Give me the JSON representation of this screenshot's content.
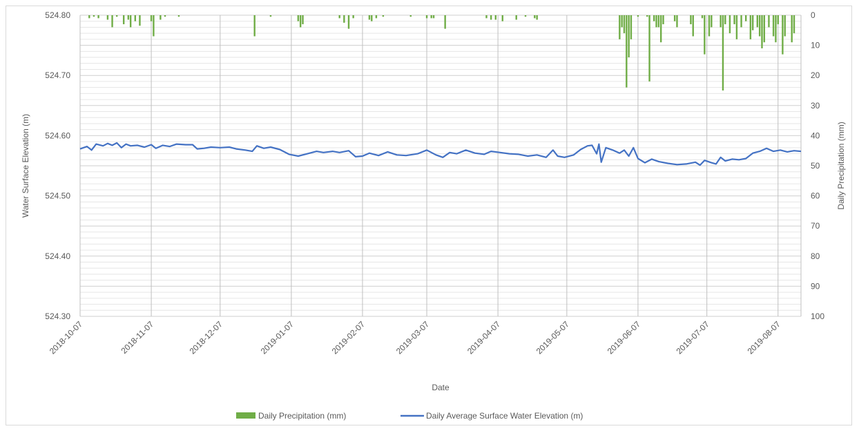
{
  "chart_data": {
    "type": "combo",
    "xlabel": "Date",
    "ylabel_left": "Water Surface Elevation (m)",
    "ylabel_right": "Daily Precipitation (mm)",
    "ylim_left": [
      524.3,
      524.8
    ],
    "ylim_right": [
      0,
      100
    ],
    "right_axis_inverted": true,
    "x_range": [
      "2018-10-07",
      "2019-08-17"
    ],
    "x_ticks": [
      "2018-10-07",
      "2018-11-07",
      "2018-12-07",
      "2019-01-07",
      "2019-02-07",
      "2019-03-07",
      "2019-04-07",
      "2019-05-07",
      "2019-06-07",
      "2019-07-07",
      "2019-08-07"
    ],
    "y_left_ticks": [
      "524.80",
      "524.70",
      "524.60",
      "524.50",
      "524.40",
      "524.30"
    ],
    "y_right_ticks": [
      "0",
      "10",
      "20",
      "30",
      "40",
      "50",
      "60",
      "70",
      "80",
      "90",
      "100"
    ],
    "grid": true,
    "legend_position": "bottom",
    "series": [
      {
        "name": "Daily Precipitation (mm)",
        "type": "bar",
        "axis": "right",
        "color": "#70ad47",
        "points": [
          [
            "2018-10-11",
            1
          ],
          [
            "2018-10-13",
            0.5
          ],
          [
            "2018-10-15",
            1
          ],
          [
            "2018-10-19",
            1.5
          ],
          [
            "2018-10-21",
            4
          ],
          [
            "2018-10-23",
            0.5
          ],
          [
            "2018-10-26",
            3
          ],
          [
            "2018-10-28",
            1.5
          ],
          [
            "2018-10-29",
            4
          ],
          [
            "2018-10-31",
            2
          ],
          [
            "2018-11-02",
            3.5
          ],
          [
            "2018-11-07",
            2
          ],
          [
            "2018-11-08",
            7
          ],
          [
            "2018-11-11",
            1.5
          ],
          [
            "2018-11-13",
            0.5
          ],
          [
            "2018-11-19",
            0.5
          ],
          [
            "2018-12-22",
            7
          ],
          [
            "2018-12-29",
            0.5
          ],
          [
            "2019-01-10",
            2
          ],
          [
            "2019-01-11",
            4
          ],
          [
            "2019-01-12",
            3
          ],
          [
            "2019-01-28",
            1
          ],
          [
            "2019-01-30",
            2.5
          ],
          [
            "2019-02-01",
            4.5
          ],
          [
            "2019-02-03",
            1
          ],
          [
            "2019-02-10",
            1.5
          ],
          [
            "2019-02-11",
            2
          ],
          [
            "2019-02-13",
            1
          ],
          [
            "2019-02-16",
            0.5
          ],
          [
            "2019-02-28",
            0.5
          ],
          [
            "2019-03-07",
            1
          ],
          [
            "2019-03-09",
            1
          ],
          [
            "2019-03-10",
            1
          ],
          [
            "2019-03-15",
            4.5
          ],
          [
            "2019-04-02",
            1
          ],
          [
            "2019-04-04",
            1.5
          ],
          [
            "2019-04-06",
            1.5
          ],
          [
            "2019-04-09",
            2
          ],
          [
            "2019-04-15",
            1.5
          ],
          [
            "2019-04-19",
            0.5
          ],
          [
            "2019-04-23",
            1
          ],
          [
            "2019-04-24",
            1.5
          ],
          [
            "2019-05-30",
            8
          ],
          [
            "2019-05-31",
            4
          ],
          [
            "2019-06-01",
            6
          ],
          [
            "2019-06-02",
            24
          ],
          [
            "2019-06-03",
            14
          ],
          [
            "2019-06-04",
            8
          ],
          [
            "2019-06-07",
            0.5
          ],
          [
            "2019-06-11",
            0.5
          ],
          [
            "2019-06-12",
            22
          ],
          [
            "2019-06-14",
            2
          ],
          [
            "2019-06-15",
            4
          ],
          [
            "2019-06-16",
            4
          ],
          [
            "2019-06-17",
            9
          ],
          [
            "2019-06-18",
            3
          ],
          [
            "2019-06-23",
            2
          ],
          [
            "2019-06-24",
            4
          ],
          [
            "2019-06-30",
            3
          ],
          [
            "2019-07-01",
            7
          ],
          [
            "2019-07-05",
            1
          ],
          [
            "2019-07-06",
            13
          ],
          [
            "2019-07-08",
            7
          ],
          [
            "2019-07-09",
            4
          ],
          [
            "2019-07-13",
            4
          ],
          [
            "2019-07-14",
            25
          ],
          [
            "2019-07-15",
            3
          ],
          [
            "2019-07-17",
            6
          ],
          [
            "2019-07-19",
            3
          ],
          [
            "2019-07-20",
            8
          ],
          [
            "2019-07-22",
            4
          ],
          [
            "2019-07-24",
            2
          ],
          [
            "2019-07-26",
            8
          ],
          [
            "2019-07-27",
            5
          ],
          [
            "2019-07-29",
            4
          ],
          [
            "2019-07-30",
            7
          ],
          [
            "2019-07-31",
            11
          ],
          [
            "2019-08-01",
            9
          ],
          [
            "2019-08-03",
            4
          ],
          [
            "2019-08-05",
            7
          ],
          [
            "2019-08-06",
            9
          ],
          [
            "2019-08-07",
            3
          ],
          [
            "2019-08-09",
            13
          ],
          [
            "2019-08-10",
            7
          ],
          [
            "2019-08-13",
            9
          ],
          [
            "2019-08-14",
            6
          ]
        ]
      },
      {
        "name": "Daily Average Surface Water Elevation (m)",
        "type": "line",
        "axis": "left",
        "color": "#4472c4",
        "points": [
          [
            "2018-10-07",
            524.578
          ],
          [
            "2018-10-10",
            524.582
          ],
          [
            "2018-10-12",
            524.576
          ],
          [
            "2018-10-14",
            524.586
          ],
          [
            "2018-10-17",
            524.583
          ],
          [
            "2018-10-19",
            524.587
          ],
          [
            "2018-10-21",
            524.584
          ],
          [
            "2018-10-23",
            524.588
          ],
          [
            "2018-10-25",
            524.58
          ],
          [
            "2018-10-27",
            524.586
          ],
          [
            "2018-10-29",
            524.583
          ],
          [
            "2018-11-01",
            524.584
          ],
          [
            "2018-11-04",
            524.581
          ],
          [
            "2018-11-07",
            524.585
          ],
          [
            "2018-11-09",
            524.579
          ],
          [
            "2018-11-12",
            524.584
          ],
          [
            "2018-11-15",
            524.582
          ],
          [
            "2018-11-18",
            524.586
          ],
          [
            "2018-11-22",
            524.585
          ],
          [
            "2018-11-25",
            524.585
          ],
          [
            "2018-11-27",
            524.578
          ],
          [
            "2018-11-30",
            524.579
          ],
          [
            "2018-12-03",
            524.581
          ],
          [
            "2018-12-07",
            524.58
          ],
          [
            "2018-12-11",
            524.581
          ],
          [
            "2018-12-14",
            524.578
          ],
          [
            "2018-12-18",
            524.576
          ],
          [
            "2018-12-21",
            524.574
          ],
          [
            "2018-12-23",
            524.583
          ],
          [
            "2018-12-26",
            524.579
          ],
          [
            "2018-12-29",
            524.581
          ],
          [
            "2019-01-02",
            524.577
          ],
          [
            "2019-01-06",
            524.569
          ],
          [
            "2019-01-10",
            524.566
          ],
          [
            "2019-01-14",
            524.57
          ],
          [
            "2019-01-18",
            524.574
          ],
          [
            "2019-01-21",
            524.572
          ],
          [
            "2019-01-25",
            524.574
          ],
          [
            "2019-01-28",
            524.572
          ],
          [
            "2019-02-01",
            524.575
          ],
          [
            "2019-02-04",
            524.565
          ],
          [
            "2019-02-07",
            524.566
          ],
          [
            "2019-02-10",
            524.571
          ],
          [
            "2019-02-14",
            524.567
          ],
          [
            "2019-02-18",
            524.573
          ],
          [
            "2019-02-22",
            524.568
          ],
          [
            "2019-02-26",
            524.567
          ],
          [
            "2019-03-03",
            524.57
          ],
          [
            "2019-03-07",
            524.576
          ],
          [
            "2019-03-11",
            524.568
          ],
          [
            "2019-03-14",
            524.564
          ],
          [
            "2019-03-17",
            524.572
          ],
          [
            "2019-03-20",
            524.57
          ],
          [
            "2019-03-24",
            524.576
          ],
          [
            "2019-03-28",
            524.571
          ],
          [
            "2019-04-01",
            524.569
          ],
          [
            "2019-04-04",
            524.574
          ],
          [
            "2019-04-08",
            524.572
          ],
          [
            "2019-04-12",
            524.57
          ],
          [
            "2019-04-16",
            524.569
          ],
          [
            "2019-04-20",
            524.566
          ],
          [
            "2019-04-24",
            524.568
          ],
          [
            "2019-04-28",
            524.564
          ],
          [
            "2019-05-01",
            524.576
          ],
          [
            "2019-05-03",
            524.566
          ],
          [
            "2019-05-06",
            524.564
          ],
          [
            "2019-05-10",
            524.568
          ],
          [
            "2019-05-13",
            524.577
          ],
          [
            "2019-05-16",
            524.583
          ],
          [
            "2019-05-18",
            524.584
          ],
          [
            "2019-05-20",
            524.57
          ],
          [
            "2019-05-21",
            524.586
          ],
          [
            "2019-05-22",
            524.556
          ],
          [
            "2019-05-24",
            524.58
          ],
          [
            "2019-05-27",
            524.576
          ],
          [
            "2019-05-30",
            524.571
          ],
          [
            "2019-06-01",
            524.576
          ],
          [
            "2019-06-03",
            524.566
          ],
          [
            "2019-06-05",
            524.58
          ],
          [
            "2019-06-07",
            524.562
          ],
          [
            "2019-06-10",
            524.555
          ],
          [
            "2019-06-13",
            524.561
          ],
          [
            "2019-06-16",
            524.557
          ],
          [
            "2019-06-20",
            524.554
          ],
          [
            "2019-06-24",
            524.552
          ],
          [
            "2019-06-28",
            524.553
          ],
          [
            "2019-07-02",
            524.556
          ],
          [
            "2019-07-04",
            524.551
          ],
          [
            "2019-07-06",
            524.559
          ],
          [
            "2019-07-09",
            524.555
          ],
          [
            "2019-07-11",
            524.553
          ],
          [
            "2019-07-13",
            524.564
          ],
          [
            "2019-07-15",
            524.558
          ],
          [
            "2019-07-18",
            524.561
          ],
          [
            "2019-07-21",
            524.56
          ],
          [
            "2019-07-24",
            524.562
          ],
          [
            "2019-07-27",
            524.571
          ],
          [
            "2019-07-30",
            524.574
          ],
          [
            "2019-08-02",
            524.579
          ],
          [
            "2019-08-05",
            524.574
          ],
          [
            "2019-08-08",
            524.576
          ],
          [
            "2019-08-11",
            524.573
          ],
          [
            "2019-08-14",
            524.575
          ],
          [
            "2019-08-17",
            524.574
          ]
        ]
      }
    ]
  }
}
